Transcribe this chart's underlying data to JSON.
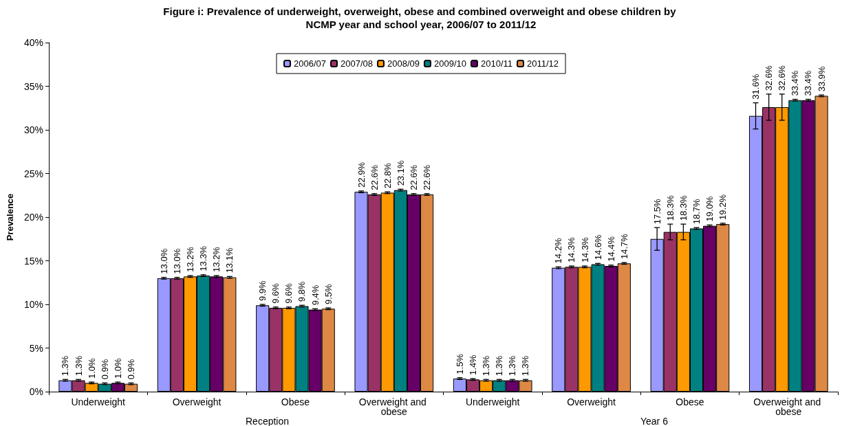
{
  "chart_data": {
    "type": "bar",
    "title": "Figure i: Prevalence of underweight, overweight, obese and combined overweight and obese children by NCMP year and school year, 2006/07 to 2011/12",
    "ylabel": "Prevalence",
    "categories": [
      "Underweight",
      "Overweight",
      "Obese",
      "Overweight and obese",
      "Underweight",
      "Overweight",
      "Obese",
      "Overweight and obese"
    ],
    "annotations": [
      "Reception",
      "Year 6"
    ],
    "ylim": [
      0,
      40
    ],
    "yticks": [
      {
        "value": 0,
        "label": "0%"
      },
      {
        "value": 5,
        "label": "5%"
      },
      {
        "value": 10,
        "label": "10%"
      },
      {
        "value": 15,
        "label": "15%"
      },
      {
        "value": 20,
        "label": "20%"
      },
      {
        "value": 25,
        "label": "25%"
      },
      {
        "value": 30,
        "label": "30%"
      },
      {
        "value": 35,
        "label": "35%"
      },
      {
        "value": 40,
        "label": "40%"
      }
    ],
    "grid": false,
    "legend": "top",
    "series": [
      {
        "name": "2006/07",
        "color": "#9999ff",
        "values": [
          1.3,
          13.0,
          9.9,
          22.9,
          1.5,
          14.2,
          17.5,
          31.6
        ],
        "errors": [
          0.1,
          0.1,
          0.1,
          0.1,
          0.1,
          0.1,
          1.3,
          1.5
        ],
        "value_labels": [
          "1.3%",
          "13.0%",
          "9.9%",
          "22.9%",
          "1.5%",
          "14.2%",
          "17.5%",
          "31.6%"
        ]
      },
      {
        "name": "2007/08",
        "color": "#993366",
        "values": [
          1.3,
          13.0,
          9.6,
          22.6,
          1.4,
          14.3,
          18.3,
          32.6
        ],
        "errors": [
          0.1,
          0.1,
          0.1,
          0.1,
          0.1,
          0.1,
          0.9,
          1.5
        ],
        "value_labels": [
          "1.3%",
          "13.0%",
          "9.6%",
          "22.6%",
          "1.4%",
          "14.3%",
          "18.3%",
          "32.6%"
        ]
      },
      {
        "name": "2008/09",
        "color": "#ff9900",
        "values": [
          1.0,
          13.2,
          9.6,
          22.8,
          1.3,
          14.3,
          18.3,
          32.6
        ],
        "errors": [
          0.1,
          0.1,
          0.1,
          0.1,
          0.1,
          0.1,
          0.9,
          1.5
        ],
        "value_labels": [
          "1.0%",
          "13.2%",
          "9.6%",
          "22.8%",
          "1.3%",
          "14.3%",
          "18.3%",
          "32.6%"
        ]
      },
      {
        "name": "2009/10",
        "color": "#008080",
        "values": [
          0.9,
          13.3,
          9.8,
          23.1,
          1.3,
          14.6,
          18.7,
          33.4
        ],
        "errors": [
          0.1,
          0.1,
          0.1,
          0.1,
          0.1,
          0.1,
          0.1,
          0.1
        ],
        "value_labels": [
          "0.9%",
          "13.3%",
          "9.8%",
          "23.1%",
          "1.3%",
          "14.6%",
          "18.7%",
          "33.4%"
        ]
      },
      {
        "name": "2010/11",
        "color": "#660066",
        "values": [
          1.0,
          13.2,
          9.4,
          22.6,
          1.3,
          14.4,
          19.0,
          33.4
        ],
        "errors": [
          0.1,
          0.1,
          0.1,
          0.1,
          0.1,
          0.1,
          0.1,
          0.1
        ],
        "value_labels": [
          "1.0%",
          "13.2%",
          "9.4%",
          "22.6%",
          "1.3%",
          "14.4%",
          "19.0%",
          "33.4%"
        ]
      },
      {
        "name": "2011/12",
        "color": "#dd8844",
        "values": [
          0.9,
          13.1,
          9.5,
          22.6,
          1.3,
          14.7,
          19.2,
          33.9
        ],
        "errors": [
          0.1,
          0.1,
          0.1,
          0.1,
          0.1,
          0.1,
          0.1,
          0.1
        ],
        "value_labels": [
          "0.9%",
          "13.1%",
          "9.5%",
          "22.6%",
          "1.3%",
          "14.7%",
          "19.2%",
          "33.9%"
        ]
      }
    ]
  }
}
